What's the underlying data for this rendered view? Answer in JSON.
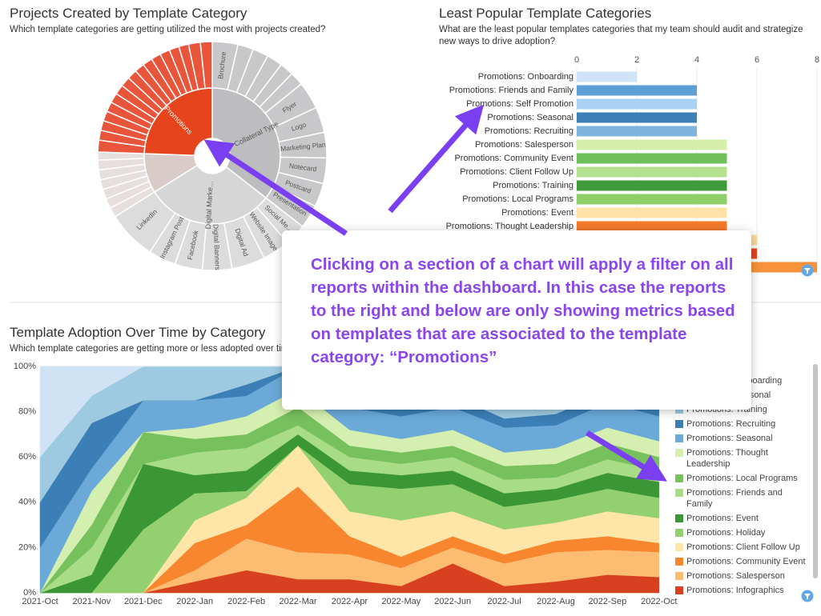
{
  "callout": "Clicking on a section of a chart will apply a filter on all reports within the dashboard. In this case the reports to the right and below are only showing metrics based on templates that are associated to the template category: “Promotions”",
  "chart_data": [
    {
      "type": "sunburst",
      "title": "Projects Created by Template Category",
      "subtitle": "Which template categories are getting utilized the most with projects created?",
      "categories": [
        "Collateral Type",
        "Digital Marke...",
        null,
        "Promotions"
      ],
      "values": [
        128,
        110,
        34,
        88
      ],
      "colors": [
        "#bdbdc0",
        "#d6d6d6",
        "#d9ccc8",
        "#e5441c"
      ],
      "children": [
        {
          "labels": [
            "Brochure",
            null,
            null,
            null,
            null,
            null,
            "Flyer",
            "Logo",
            "Marketing Plan",
            "Notecard",
            "Postcard",
            "Presentation"
          ],
          "values": [
            13,
            8,
            8,
            8,
            7,
            7,
            14,
            13,
            13,
            13,
            12,
            12
          ],
          "color": "#c8c8ca"
        },
        {
          "labels": [
            "Social Me...",
            "Website Image",
            "Digital Ad",
            "Digital Banners",
            "Facebook",
            "Instagram Post",
            "LinkedIn"
          ],
          "values": [
            11,
            14,
            17,
            15,
            14,
            14,
            25
          ],
          "color": "#dcdcdc"
        },
        {
          "labels": [
            null,
            null,
            null,
            null,
            null,
            null,
            null
          ],
          "values": [
            5,
            5,
            5,
            5,
            5,
            5,
            4
          ],
          "color": "#e6dfdd"
        },
        {
          "labels": [
            null,
            null,
            null,
            null,
            null,
            null,
            null,
            null,
            null,
            null,
            null,
            null,
            null,
            null,
            null,
            null,
            null
          ],
          "values": [
            6,
            5,
            5,
            5,
            5,
            5,
            5,
            5,
            5,
            5,
            5,
            5,
            5,
            5,
            5,
            6,
            6
          ],
          "color": "#e8553a"
        }
      ]
    },
    {
      "type": "bar",
      "orientation": "horizontal",
      "title": "Least Popular Template Categories",
      "subtitle": "What are the least popular templates categories that my team should audit and strategize new ways to drive adoption?",
      "categories": [
        "Promotions: Onboarding",
        "Promotions: Friends and Family",
        "Promotions: Self Promotion",
        "Promotions: Seasonal",
        "Promotions: Recruiting",
        "Promotions: Salesperson",
        "Promotions: Community Event",
        "Promotions: Client Follow Up",
        "Promotions: Training",
        "Promotions: Local Programs",
        "Promotions: Event",
        "Promotions: Thought Leadership",
        null,
        null,
        null
      ],
      "values": [
        2,
        4,
        4,
        4,
        4,
        5,
        5,
        5,
        5,
        5,
        5,
        5,
        6,
        6,
        8
      ],
      "colors": [
        "#d0e4f7",
        "#5b9fd3",
        "#a9d0f5",
        "#3d7fb9",
        "#7fb4df",
        "#d4efaa",
        "#6fbf5a",
        "#b5e08e",
        "#3f9a3a",
        "#8fcf6a",
        "#fde3a7",
        "#f47a2c",
        "#fcd8a0",
        "#e6451f",
        "#f8923a"
      ],
      "xlim": [
        0,
        8
      ],
      "xticks": [
        0,
        2,
        4,
        6,
        8
      ],
      "grid": true
    },
    {
      "type": "area",
      "stacked": true,
      "title": "Template Adoption Over Time by Category",
      "subtitle": "Which template categories are getting more or less adopted over time?",
      "categories": [
        "2021-Oct",
        "2021-Nov",
        "2021-Dec",
        "2022-Jan",
        "2022-Feb",
        "2022-Mar",
        "2022-Apr",
        "2022-May",
        "2022-Jun",
        "2022-Jul",
        "2022-Aug",
        "2022-Sep",
        "2022-Oct"
      ],
      "ylim": [
        0,
        100
      ],
      "yticks": [
        {
          "value": 0,
          "label": "0%"
        },
        {
          "value": 20,
          "label": "20%"
        },
        {
          "value": 40,
          "label": "40%"
        },
        {
          "value": 60,
          "label": "60%"
        },
        {
          "value": 80,
          "label": "80%"
        },
        {
          "value": 100,
          "label": "100%"
        }
      ],
      "legend": "right",
      "series": [
        {
          "name": "Promotions: Onboarding",
          "color": "#cfe3f5",
          "values": [
            40,
            13,
            0,
            0,
            0,
            0,
            0,
            0,
            0,
            6,
            6,
            0,
            2
          ]
        },
        {
          "name": "Promotions: Personal",
          "color": "#b9d6f0",
          "values": [
            0,
            0,
            0,
            0,
            0,
            0,
            5,
            5,
            3,
            5,
            5,
            2,
            5
          ]
        },
        {
          "name": "Promotions: Training",
          "color": "#9ecae1",
          "values": [
            20,
            12,
            15,
            15,
            8,
            0,
            8,
            10,
            10,
            12,
            10,
            9,
            10
          ]
        },
        {
          "name": "Promotions: Recruiting",
          "color": "#3b7fb6",
          "values": [
            20,
            20,
            0,
            0,
            5,
            0,
            5,
            7,
            5,
            4,
            5,
            5,
            5
          ]
        },
        {
          "name": "Promotions: Seasonal",
          "color": "#6aa9d8",
          "values": [
            20,
            10,
            14,
            12,
            9,
            10,
            10,
            10,
            10,
            11,
            10,
            11,
            11
          ]
        },
        {
          "name": "Promotions: Thought Leadership",
          "color": "#d5efb0",
          "values": [
            0,
            15,
            0,
            5,
            8,
            8,
            7,
            6,
            7,
            6,
            7,
            7,
            7
          ]
        },
        {
          "name": "Promotions: Local Programs",
          "color": "#76c05e",
          "values": [
            0,
            10,
            14,
            6,
            6,
            8,
            5,
            5,
            5,
            6,
            6,
            7,
            6
          ]
        },
        {
          "name": "Promotions: Friends and Family",
          "color": "#a8dc86",
          "values": [
            0,
            12,
            0,
            10,
            10,
            4,
            6,
            5,
            6,
            6,
            5,
            6,
            5
          ]
        },
        {
          "name": "Promotions: Event",
          "color": "#3b9636",
          "values": [
            0,
            8,
            29,
            8,
            9,
            5,
            6,
            6,
            6,
            6,
            5,
            7,
            7
          ]
        },
        {
          "name": "Promotions: Holiday",
          "color": "#93d070",
          "values": [
            0,
            0,
            28,
            12,
            3,
            0,
            12,
            14,
            12,
            10,
            10,
            10,
            9
          ]
        },
        {
          "name": "Promotions: Client Follow Up",
          "color": "#fde6a8",
          "values": [
            0,
            0,
            0,
            10,
            12,
            18,
            11,
            16,
            11,
            11,
            8,
            11,
            11
          ]
        },
        {
          "name": "Promotions: Community Event",
          "color": "#f7862f",
          "values": [
            0,
            0,
            0,
            12,
            6,
            29,
            8,
            5,
            5,
            4,
            5,
            6,
            4
          ]
        },
        {
          "name": "Promotions: Salesperson",
          "color": "#fcbc72",
          "values": [
            0,
            0,
            0,
            5,
            14,
            12,
            11,
            8,
            7,
            10,
            13,
            11,
            11
          ]
        },
        {
          "name": "Promotions: Infographics",
          "color": "#d8411f",
          "values": [
            0,
            0,
            0,
            5,
            10,
            6,
            6,
            3,
            13,
            3,
            5,
            8,
            7
          ]
        }
      ]
    }
  ]
}
